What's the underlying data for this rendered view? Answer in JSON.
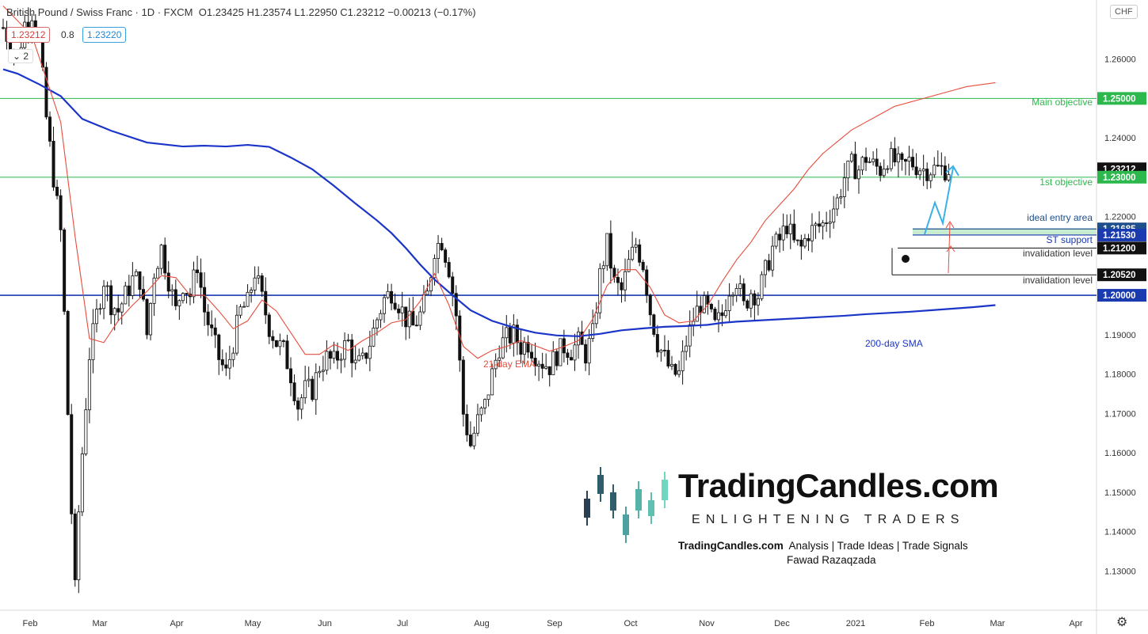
{
  "header": {
    "title": "British Pound / Swiss Franc · 1D · FXCM",
    "ohlc": "O1.23425  H1.23574  L1.22950  C1.23212  −0.00213 (−0.17%)",
    "sell_price": "1.23212",
    "spread": "0.8",
    "buy_price": "1.23220",
    "indicator_toggle": "2",
    "currency": "CHF"
  },
  "colors": {
    "sma": "#1a35c8",
    "ema": "#e74c3c",
    "green_line": "#2db84d",
    "support_line": "#1a3ab0",
    "arrow_blue": "#3ab0e8",
    "arrow_red": "#e74c3c",
    "bull": "#ffffff",
    "bear": "#111111"
  },
  "chart_data": {
    "type": "candlestick",
    "symbol": "GBP/CHF",
    "timeframe": "1D",
    "ylim": [
      1.12,
      1.275
    ],
    "y_ticks": [
      "1.26000",
      "1.24000",
      "1.22000",
      "1.19000",
      "1.18000",
      "1.17000",
      "1.16000",
      "1.15000",
      "1.14000",
      "1.13000"
    ],
    "x_ticks": [
      "Feb",
      "Mar",
      "Apr",
      "May",
      "Jun",
      "Jul",
      "Aug",
      "Sep",
      "Oct",
      "Nov",
      "Dec",
      "2021",
      "Feb",
      "Mar",
      "Apr"
    ],
    "price_levels": [
      {
        "value": 1.25,
        "label": "1.25000",
        "annotation": "Main objective",
        "color": "#2db84d",
        "style": "line"
      },
      {
        "value": 1.23212,
        "label": "1.23212",
        "annotation": "",
        "color": "#111111",
        "style": "current"
      },
      {
        "value": 1.23,
        "label": "1.23000",
        "annotation": "1st objective",
        "color": "#2db84d",
        "style": "line"
      },
      {
        "value": 1.21685,
        "label": "1.21685",
        "annotation": "ideal entry area",
        "color": "#1e4f8c",
        "style": "zone-top"
      },
      {
        "value": 1.2153,
        "label": "1.21530",
        "annotation": "ST support",
        "color": "#1a3ab0",
        "style": "zone-bottom"
      },
      {
        "value": 1.212,
        "label": "1.21200",
        "annotation": "invalidation level",
        "color": "#111111",
        "style": "short"
      },
      {
        "value": 1.2052,
        "label": "1.20520",
        "annotation": "invalidation level",
        "color": "#111111",
        "style": "short"
      },
      {
        "value": 1.2,
        "label": "1.20000",
        "annotation": "",
        "color": "#1a3ab0",
        "style": "line"
      }
    ],
    "series": [
      {
        "name": "200-day SMA",
        "type": "line",
        "x": [
          0,
          4,
          10,
          16,
          22,
          30,
          40,
          50,
          56,
          62,
          68,
          74,
          80,
          86,
          92,
          98,
          104,
          108,
          112,
          116,
          120,
          125,
          130,
          136,
          142,
          148,
          154,
          160,
          166,
          172,
          178,
          184,
          190,
          196,
          200,
          204,
          210,
          216,
          222,
          228,
          234,
          240,
          246,
          252,
          258,
          264,
          270,
          276
        ],
        "values": [
          1.2574,
          1.2563,
          1.2536,
          1.2506,
          1.2448,
          1.2418,
          1.2388,
          1.2378,
          1.238,
          1.2378,
          1.2382,
          1.2377,
          1.235,
          1.232,
          1.2278,
          1.2233,
          1.219,
          1.2158,
          1.212,
          1.2078,
          1.204,
          1.2,
          1.1962,
          1.1935,
          1.1918,
          1.1905,
          1.1898,
          1.1896,
          1.1902,
          1.1911,
          1.1916,
          1.192,
          1.1922,
          1.1925,
          1.193,
          1.1933,
          1.1936,
          1.1939,
          1.1942,
          1.1945,
          1.1948,
          1.1952,
          1.1955,
          1.1958,
          1.1962,
          1.1966,
          1.197,
          1.1975
        ]
      },
      {
        "name": "21-day EMA",
        "type": "line",
        "x": [
          0,
          8,
          16,
          20,
          24,
          28,
          32,
          36,
          40,
          44,
          48,
          52,
          56,
          60,
          64,
          68,
          72,
          76,
          80,
          84,
          88,
          92,
          96,
          100,
          104,
          108,
          112,
          116,
          120,
          124,
          128,
          132,
          136,
          140,
          144,
          148,
          152,
          156,
          160,
          164,
          168,
          172,
          176,
          180,
          184,
          188,
          192,
          196,
          200,
          204,
          208,
          212,
          216,
          220,
          224,
          228,
          232,
          236,
          240,
          244,
          248,
          252,
          256,
          260,
          264,
          268,
          272,
          276
        ],
        "values": [
          1.2735,
          1.266,
          1.244,
          1.215,
          1.189,
          1.188,
          1.1935,
          1.1975,
          1.201,
          1.205,
          1.2045,
          1.2,
          1.2,
          1.196,
          1.1915,
          1.1935,
          1.1988,
          1.196,
          1.1905,
          1.185,
          1.185,
          1.1875,
          1.186,
          1.1885,
          1.1905,
          1.193,
          1.1938,
          1.1985,
          1.2055,
          1.1975,
          1.187,
          1.184,
          1.186,
          1.187,
          1.1885,
          1.1872,
          1.1858,
          1.187,
          1.1885,
          1.194,
          1.2025,
          1.2065,
          1.2065,
          1.202,
          1.195,
          1.193,
          1.1935,
          1.1975,
          1.2035,
          1.209,
          1.2135,
          1.219,
          1.223,
          1.227,
          1.232,
          1.236,
          1.239,
          1.242,
          1.244,
          1.246,
          1.248,
          1.249,
          1.25,
          1.251,
          1.252,
          1.253,
          1.2535,
          1.254
        ]
      }
    ],
    "candles_note": "daily OHLC generated along the close path below",
    "close_path": {
      "x": [
        0,
        2,
        4,
        6,
        8,
        10,
        12,
        14,
        16,
        17,
        18,
        19,
        20,
        21,
        22,
        24,
        26,
        28,
        30,
        32,
        34,
        36,
        38,
        40,
        42,
        44,
        46,
        48,
        50,
        52,
        54,
        56,
        58,
        60,
        62,
        64,
        66,
        68,
        70,
        72,
        74,
        76,
        78,
        80,
        82,
        84,
        86,
        88,
        90,
        92,
        94,
        96,
        98,
        100,
        102,
        104,
        106,
        108,
        110,
        112,
        114,
        116,
        118,
        120,
        122,
        124,
        126,
        128,
        130,
        132,
        134,
        136,
        138,
        140,
        142,
        144,
        146,
        148,
        150,
        152,
        154,
        156,
        158,
        160,
        162,
        164,
        166,
        168,
        170,
        172,
        174,
        176,
        178,
        180,
        182,
        184,
        186,
        188,
        190,
        192,
        194,
        196,
        198,
        200,
        202,
        204,
        206,
        208,
        210,
        212,
        214,
        216,
        218,
        220,
        222,
        224,
        226,
        228,
        230,
        232,
        234,
        236,
        238,
        240,
        242,
        244,
        246,
        248,
        250,
        252,
        254,
        256,
        258,
        260,
        262,
        264,
        266
      ],
      "values": [
        1.268,
        1.264,
        1.26,
        1.269,
        1.272,
        1.265,
        1.245,
        1.23,
        1.216,
        1.195,
        1.17,
        1.145,
        1.125,
        1.145,
        1.16,
        1.185,
        1.195,
        1.204,
        1.198,
        1.196,
        1.2,
        1.204,
        1.204,
        1.19,
        1.206,
        1.212,
        1.204,
        1.196,
        1.203,
        1.2,
        1.208,
        1.196,
        1.19,
        1.184,
        1.18,
        1.188,
        1.196,
        1.198,
        1.206,
        1.199,
        1.192,
        1.188,
        1.186,
        1.18,
        1.172,
        1.176,
        1.176,
        1.182,
        1.184,
        1.183,
        1.186,
        1.188,
        1.182,
        1.183,
        1.188,
        1.194,
        1.199,
        1.201,
        1.198,
        1.194,
        1.192,
        1.195,
        1.2,
        1.212,
        1.214,
        1.207,
        1.195,
        1.17,
        1.162,
        1.168,
        1.172,
        1.18,
        1.187,
        1.189,
        1.19,
        1.187,
        1.188,
        1.185,
        1.183,
        1.182,
        1.185,
        1.187,
        1.186,
        1.188,
        1.185,
        1.19,
        1.205,
        1.213,
        1.203,
        1.201,
        1.208,
        1.213,
        1.208,
        1.196,
        1.188,
        1.184,
        1.18,
        1.18,
        1.188,
        1.194,
        1.198,
        1.196,
        1.192,
        1.195,
        1.202,
        1.204,
        1.197,
        1.201,
        1.2,
        1.206,
        1.212,
        1.214,
        1.218,
        1.213,
        1.212,
        1.216,
        1.217,
        1.218,
        1.221,
        1.224,
        1.23,
        1.233,
        1.232,
        1.235,
        1.233,
        1.232,
        1.235,
        1.234,
        1.232,
        1.234,
        1.233,
        1.232,
        1.2321,
        1.2321,
        1.2321,
        1.2321,
        1.2321
      ]
    },
    "annotations": [
      {
        "text": "Main objective",
        "color": "#2db84d"
      },
      {
        "text": "1st objective",
        "color": "#2db84d"
      },
      {
        "text": "ideal entry area",
        "color": "#1e4f8c"
      },
      {
        "text": "ST support",
        "color": "#1a3ab0"
      },
      {
        "text": "invalidation level",
        "color": "#333333"
      },
      {
        "text": "invalidation level",
        "color": "#333333"
      },
      {
        "text": "21-day EMA",
        "color": "#e74c3c"
      },
      {
        "text": "200-day SMA",
        "color": "#1a35c8"
      }
    ]
  },
  "watermark": {
    "brand": "TradingCandles.com",
    "tagline": "ENLIGHTENING TRADERS",
    "line_brand": "TradingCandles.com",
    "line_rest": "Analysis | Trade Ideas | Trade Signals",
    "author": "Fawad Razaqzada"
  }
}
